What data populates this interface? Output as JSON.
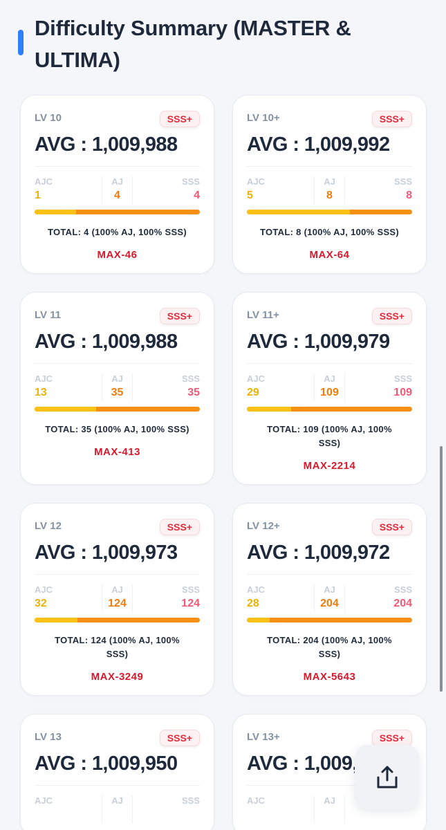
{
  "section": {
    "title": "Difficulty Summary (MASTER & ULTIMA)"
  },
  "stat_labels": {
    "ajc": "AJC",
    "aj": "AJ",
    "sss": "SSS"
  },
  "cards": [
    {
      "level": "LV 10",
      "rank": "SSS+",
      "avg": "AVG : 1,009,988",
      "ajc": "1",
      "aj": "4",
      "sss": "4",
      "ajc_fraction": 0.25,
      "total": "TOTAL: 4   (100% AJ, 100% SSS)",
      "max": "MAX-46"
    },
    {
      "level": "LV 10+",
      "rank": "SSS+",
      "avg": "AVG : 1,009,992",
      "ajc": "5",
      "aj": "8",
      "sss": "8",
      "ajc_fraction": 0.625,
      "total": "TOTAL: 8   (100% AJ, 100% SSS)",
      "max": "MAX-64"
    },
    {
      "level": "LV 11",
      "rank": "SSS+",
      "avg": "AVG : 1,009,988",
      "ajc": "13",
      "aj": "35",
      "sss": "35",
      "ajc_fraction": 0.371,
      "total": "TOTAL: 35   (100% AJ, 100% SSS)",
      "max": "MAX-413"
    },
    {
      "level": "LV 11+",
      "rank": "SSS+",
      "avg": "AVG : 1,009,979",
      "ajc": "29",
      "aj": "109",
      "sss": "109",
      "ajc_fraction": 0.266,
      "total": "TOTAL: 109   (100% AJ, 100% SSS)",
      "max": "MAX-2214"
    },
    {
      "level": "LV 12",
      "rank": "SSS+",
      "avg": "AVG : 1,009,973",
      "ajc": "32",
      "aj": "124",
      "sss": "124",
      "ajc_fraction": 0.258,
      "total": "TOTAL: 124   (100% AJ, 100% SSS)",
      "max": "MAX-3249"
    },
    {
      "level": "LV 12+",
      "rank": "SSS+",
      "avg": "AVG : 1,009,972",
      "ajc": "28",
      "aj": "204",
      "sss": "204",
      "ajc_fraction": 0.137,
      "total": "TOTAL: 204   (100% AJ, 100% SSS)",
      "max": "MAX-5643"
    },
    {
      "level": "LV 13",
      "rank": "SSS+",
      "avg": "AVG : 1,009,950"
    },
    {
      "level": "LV 13+",
      "rank": "SSS+",
      "avg": "AVG : 1,009,"
    }
  ],
  "colors": {
    "accent": "#2f80ff",
    "ajc": "#eab308",
    "aj": "#ef7d0e",
    "sss": "#f05a78",
    "max": "#d7192d",
    "rank_badge": "#e12b3c"
  },
  "icons": {
    "share": "share-icon"
  }
}
